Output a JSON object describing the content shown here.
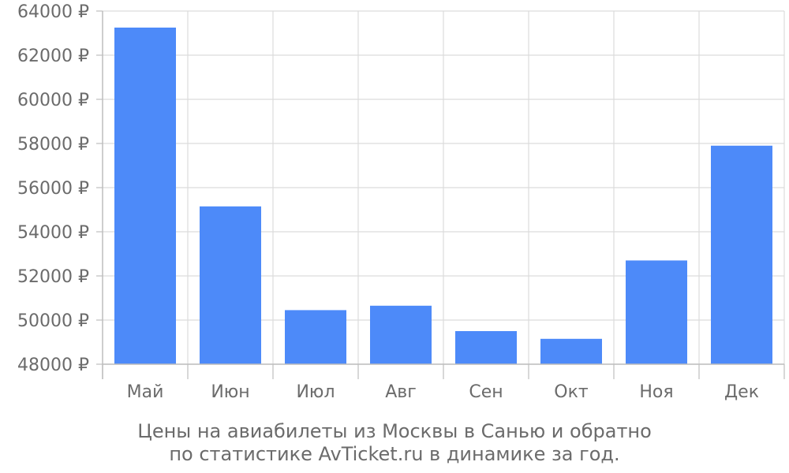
{
  "chart_data": {
    "type": "bar",
    "categories": [
      "Май",
      "Июн",
      "Июл",
      "Авг",
      "Сен",
      "Окт",
      "Ноя",
      "Дек"
    ],
    "values": [
      63250,
      55150,
      50450,
      50650,
      49500,
      49150,
      52700,
      57900
    ],
    "ylim": [
      48000,
      64000
    ],
    "yticks": [
      48000,
      50000,
      52000,
      54000,
      56000,
      58000,
      60000,
      62000,
      64000
    ],
    "ytick_suffix": " ₽",
    "grid": true,
    "bar_color": "#4d8af9",
    "caption_line1": "Цены на авиабилеты из Москвы в Санью и обратно",
    "caption_line2": "по статистике AvTicket.ru в динамике за год."
  }
}
